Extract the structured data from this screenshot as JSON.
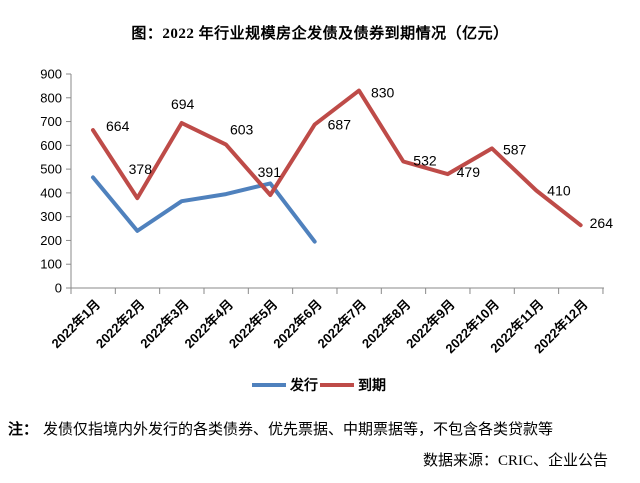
{
  "chart_data": {
    "type": "line",
    "title": "图：2022 年行业规模房企发债及债券到期情况（亿元）",
    "categories": [
      "2022年1月",
      "2022年2月",
      "2022年3月",
      "2022年4月",
      "2022年5月",
      "2022年6月",
      "2022年7月",
      "2022年8月",
      "2022年9月",
      "2022年10月",
      "2022年11月",
      "2022年12月"
    ],
    "series": [
      {
        "name": "发行",
        "color": "#4F81BD",
        "values": [
          465,
          240,
          365,
          395,
          440,
          195,
          null,
          null,
          null,
          null,
          null,
          null
        ],
        "data_labels": false
      },
      {
        "name": "到期",
        "color": "#BE4B48",
        "values": [
          664,
          378,
          694,
          603,
          391,
          687,
          830,
          532,
          479,
          587,
          410,
          264
        ],
        "data_labels": true
      }
    ],
    "xlabel": "",
    "ylabel": "",
    "ylim": [
      0,
      900
    ],
    "ytick_step": 100,
    "grid": false,
    "legend_position": "bottom"
  },
  "note": {
    "prefix": "注：",
    "text": "发债仅指境内外发行的各类债券、优先票据、中期票据等，不包含各类贷款等"
  },
  "source": "数据来源：CRIC、企业公告"
}
